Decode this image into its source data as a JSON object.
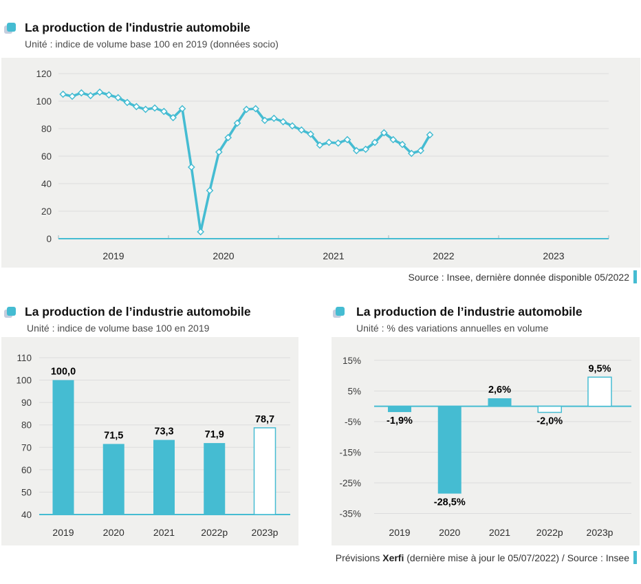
{
  "accent_color": "#45bcd2",
  "panel_bg": "#f0f0ee",
  "grid_color": "#dcdcdc",
  "bullet_icon": "teal-square-bullet",
  "source_top": "Source : Insee, dernière donnée disponible 05/2022",
  "footer": {
    "prefix": "Prévisions ",
    "brand": "Xerfi",
    "suffix": " (dernière mise à jour le 05/07/2022) / Source : Insee"
  },
  "chart_data": [
    {
      "type": "line",
      "title": "La production de l'industrie automobile",
      "subtitle_unit": "Unité : indice de volume base 100 en 2019 (données socio)",
      "frequency": "monthly",
      "x_start": "2019-01",
      "x_end": "2022-05",
      "values": [
        105,
        103.5,
        106,
        104,
        106.5,
        104.5,
        102.5,
        99,
        96,
        94,
        95,
        92.5,
        88,
        94.5,
        52,
        5,
        35,
        63,
        73.5,
        84,
        94,
        94.5,
        86,
        87.5,
        85,
        82,
        79,
        76,
        68,
        70,
        69.5,
        72,
        64,
        65,
        70,
        77,
        72,
        68.5,
        62,
        64,
        75.5
      ],
      "ylim": [
        0,
        120
      ],
      "yticks": [
        0,
        20,
        40,
        60,
        80,
        100,
        120
      ],
      "xtick_labels": [
        "2019",
        "2020",
        "2021",
        "2022",
        "2023"
      ],
      "x_axis_span_months": 60,
      "grid": true,
      "legend": false,
      "source": "Source : Insee, dernière donnée disponible 05/2022"
    },
    {
      "type": "bar",
      "title": "La production de l’industrie automobile",
      "subtitle_unit": "Unité : indice de volume base 100 en 2019",
      "categories": [
        "2019",
        "2020",
        "2021",
        "2022p",
        "2023p"
      ],
      "values": [
        100.0,
        71.5,
        73.3,
        71.9,
        78.7
      ],
      "value_labels": [
        "100,0",
        "71,5",
        "73,3",
        "71,9",
        "78,7"
      ],
      "forecast_outline": [
        false,
        false,
        false,
        false,
        true
      ],
      "ylim": [
        40,
        110
      ],
      "yticks": [
        40,
        50,
        60,
        70,
        80,
        90,
        100,
        110
      ],
      "grid": true,
      "legend": false
    },
    {
      "type": "bar",
      "title": "La production de l’industrie automobile",
      "subtitle_unit": "Unité : % des variations annuelles en volume",
      "categories": [
        "2019",
        "2020",
        "2021",
        "2022p",
        "2023p"
      ],
      "values": [
        -1.9,
        -28.5,
        2.6,
        -2.0,
        9.5
      ],
      "value_labels": [
        "-1,9%",
        "-28,5%",
        "2,6%",
        "-2,0%",
        "9,5%"
      ],
      "forecast_outline": [
        false,
        false,
        false,
        true,
        true
      ],
      "ylim": [
        -35,
        15
      ],
      "yticks": [
        15,
        5,
        -5,
        -15,
        -25,
        -35
      ],
      "ytick_labels": [
        "15%",
        "5%",
        "-5%",
        "-15%",
        "-25%",
        "-35%"
      ],
      "zero_line": true,
      "grid": true,
      "legend": false
    }
  ]
}
